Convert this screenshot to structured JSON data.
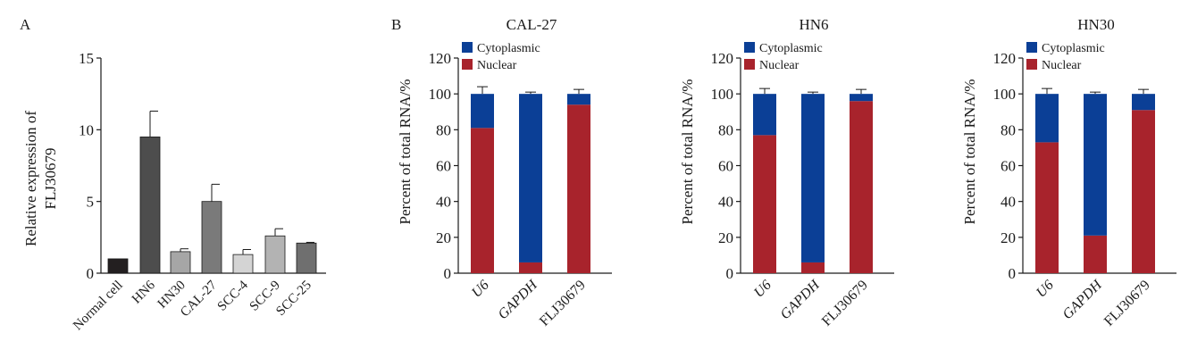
{
  "panel_labels": {
    "a": "A",
    "b": "B"
  },
  "chart_data": [
    {
      "type": "bar",
      "panel": "A",
      "title": "",
      "xlabel": "",
      "ylabel": "Relative expression of FLJ30679",
      "ylabel_lines": [
        "Relative expression of",
        "FLJ30679"
      ],
      "ylim": [
        0,
        15
      ],
      "yticks": [
        "0",
        "5",
        "10",
        "15"
      ],
      "grid": false,
      "categories": [
        "Normal cell",
        "HN6",
        "HN30",
        "CAL-27",
        "SCC-4",
        "SCC-9",
        "SCC-25"
      ],
      "values": [
        1.0,
        9.5,
        1.5,
        5.0,
        1.3,
        2.6,
        2.1
      ],
      "errors": [
        0,
        1.8,
        0.2,
        1.2,
        0.35,
        0.5,
        0.05
      ],
      "colors": [
        "#231f20",
        "#4d4d4d",
        "#a6a6a6",
        "#7a7a7a",
        "#d4d4d4",
        "#b3b3b3",
        "#6f6f6f"
      ]
    },
    {
      "type": "bar",
      "stacked": true,
      "panel": "B",
      "title": "CAL-27",
      "xlabel": "",
      "ylabel": "Percent of total RNA/%",
      "ylim": [
        0,
        120
      ],
      "yticks": [
        "0",
        "20",
        "40",
        "60",
        "80",
        "100",
        "120"
      ],
      "grid": false,
      "legend_position": "top-left",
      "categories": [
        "U6",
        "GAPDH",
        "FLJ30679"
      ],
      "italic_categories": [
        true,
        true,
        false
      ],
      "series": [
        {
          "name": "Nuclear",
          "color": "#a8232c",
          "values": [
            81,
            6,
            94
          ]
        },
        {
          "name": "Cytoplasmic",
          "color": "#0b3f96",
          "values": [
            19,
            94,
            6
          ]
        }
      ],
      "errors": [
        4,
        1,
        2.5
      ]
    },
    {
      "type": "bar",
      "stacked": true,
      "panel": "B",
      "title": "HN6",
      "xlabel": "",
      "ylabel": "Percent of total RNA/%",
      "ylim": [
        0,
        120
      ],
      "yticks": [
        "0",
        "20",
        "40",
        "60",
        "80",
        "100",
        "120"
      ],
      "grid": false,
      "legend_position": "top-left",
      "categories": [
        "U6",
        "GAPDH",
        "FLJ30679"
      ],
      "italic_categories": [
        true,
        true,
        false
      ],
      "series": [
        {
          "name": "Nuclear",
          "color": "#a8232c",
          "values": [
            77,
            6,
            96
          ]
        },
        {
          "name": "Cytoplasmic",
          "color": "#0b3f96",
          "values": [
            23,
            94,
            4
          ]
        }
      ],
      "errors": [
        3,
        1,
        2.5
      ]
    },
    {
      "type": "bar",
      "stacked": true,
      "panel": "B",
      "title": "HN30",
      "xlabel": "",
      "ylabel": "Percent of total RNA/%",
      "ylim": [
        0,
        120
      ],
      "yticks": [
        "0",
        "20",
        "40",
        "60",
        "80",
        "100",
        "120"
      ],
      "grid": false,
      "legend_position": "top-left",
      "categories": [
        "U6",
        "GAPDH",
        "FLJ30679"
      ],
      "italic_categories": [
        true,
        true,
        false
      ],
      "series": [
        {
          "name": "Nuclear",
          "color": "#a8232c",
          "values": [
            73,
            21,
            91
          ]
        },
        {
          "name": "Cytoplasmic",
          "color": "#0b3f96",
          "values": [
            27,
            79,
            9
          ]
        }
      ],
      "errors": [
        3,
        1,
        2.5
      ]
    }
  ]
}
